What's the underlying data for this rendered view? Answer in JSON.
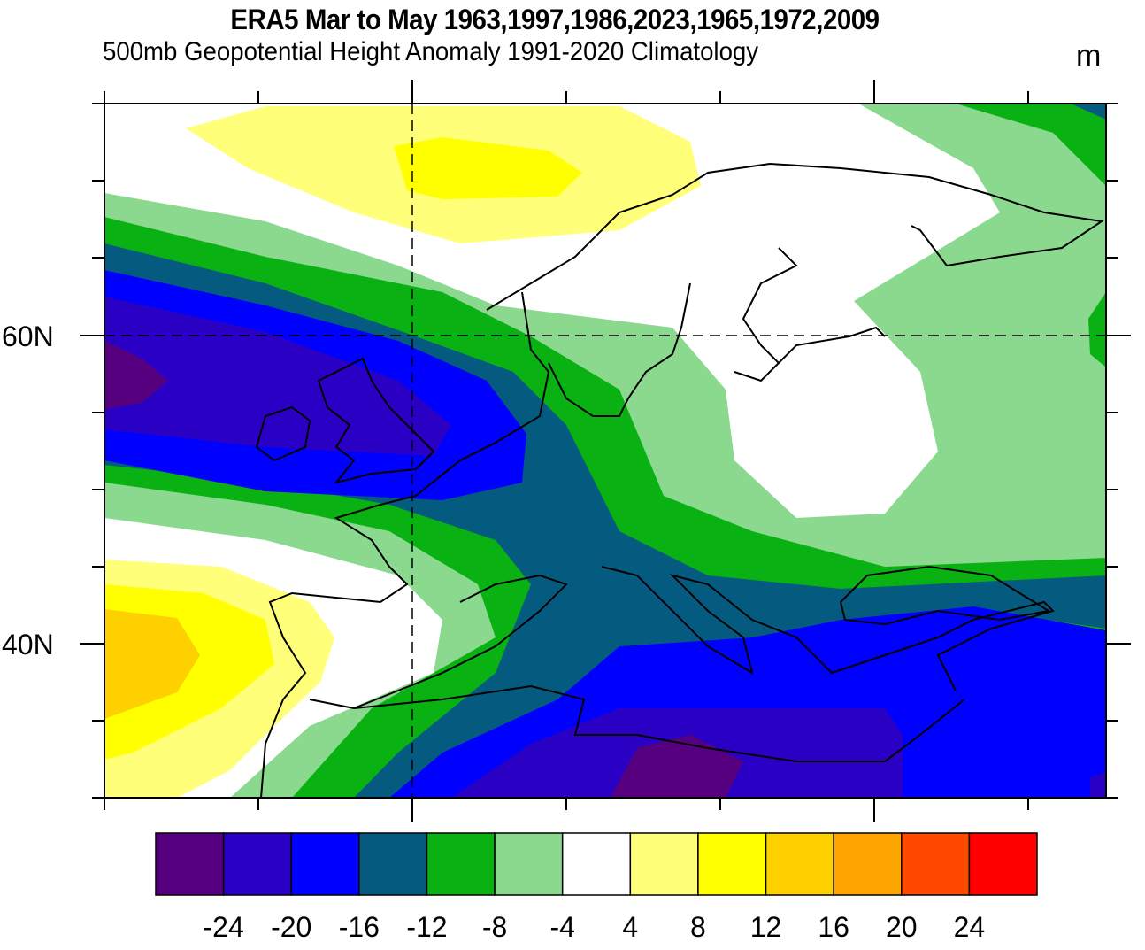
{
  "title": "ERA5  Mar to May 1963,1997,1986,2023,1965,1972,2009",
  "subtitle": "500mb Geopotential Height Anomaly  1991-2020 Climatology",
  "units": "m",
  "map": {
    "region": "Europe / North Atlantic",
    "lat_labels": [
      "60N",
      "40N"
    ],
    "gridlines": "dashed"
  },
  "colorbar": {
    "levels": [
      "-24",
      "-20",
      "-16",
      "-12",
      "-8",
      "-4",
      "4",
      "8",
      "12",
      "16",
      "20",
      "24"
    ],
    "colors": [
      "#560080",
      "#2a00c4",
      "#0000ff",
      "#055a80",
      "#0ab113",
      "#8ad98f",
      "#ffffff",
      "#ffff7a",
      "#ffff00",
      "#ffd000",
      "#ffa500",
      "#ff4800",
      "#ff0000"
    ]
  }
}
